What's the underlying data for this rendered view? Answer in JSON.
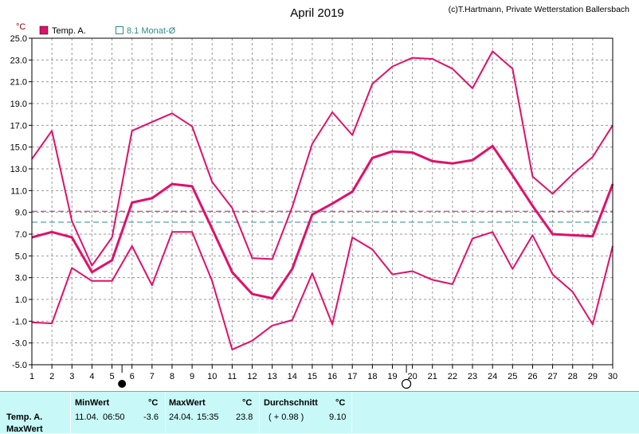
{
  "title": "April 2019",
  "credit": "(c)T.Hartmann, Private Wetterstation Ballersbach",
  "unit_label": "°C",
  "legend": [
    {
      "label": "Temp. A.",
      "color": "#e0106a",
      "icon": "filled-square-icon"
    },
    {
      "label": "8.1 Monat-Ø",
      "color": "#2e8b8b",
      "icon": "outline-square-icon"
    }
  ],
  "chart_data": {
    "type": "line",
    "title": "April 2019",
    "ylabel": "°C",
    "x": [
      1,
      2,
      3,
      4,
      5,
      6,
      7,
      8,
      9,
      10,
      11,
      12,
      13,
      14,
      15,
      16,
      17,
      18,
      19,
      20,
      21,
      22,
      23,
      24,
      25,
      26,
      27,
      28,
      29,
      30
    ],
    "ylim": [
      -5.0,
      25.0
    ],
    "yticks": [
      "25.0",
      "23.0",
      "21.0",
      "19.0",
      "17.0",
      "15.0",
      "13.0",
      "11.0",
      "9.0",
      "7.0",
      "5.0",
      "3.0",
      "1.0",
      "-1.0",
      "-3.0",
      "-5.0"
    ],
    "grid": true,
    "series": [
      {
        "role": "max",
        "color": "#e0106a",
        "values": [
          13.9,
          16.5,
          8.2,
          4.1,
          6.7,
          16.5,
          17.3,
          18.1,
          16.9,
          11.8,
          9.4,
          4.8,
          4.7,
          9.5,
          15.3,
          18.2,
          16.1,
          20.8,
          22.4,
          23.2,
          23.1,
          22.2,
          20.4,
          23.8,
          22.2,
          12.3,
          10.7,
          12.5,
          14.1,
          17.0
        ]
      },
      {
        "role": "avg",
        "color": "#e0106a",
        "values": [
          6.7,
          7.2,
          6.7,
          3.5,
          4.6,
          9.9,
          10.3,
          11.6,
          11.4,
          7.5,
          3.5,
          1.5,
          1.1,
          3.8,
          8.8,
          9.8,
          10.9,
          14.0,
          14.6,
          14.5,
          13.7,
          13.5,
          13.8,
          15.1,
          12.4,
          9.6,
          7.0,
          6.9,
          6.8,
          11.6
        ]
      },
      {
        "role": "min",
        "color": "#e0106a",
        "values": [
          -1.1,
          -1.2,
          3.9,
          2.7,
          2.7,
          5.9,
          2.3,
          7.2,
          7.2,
          2.7,
          -3.6,
          -2.8,
          -1.4,
          -0.9,
          3.4,
          -1.3,
          6.7,
          5.6,
          3.3,
          3.6,
          2.8,
          2.4,
          6.6,
          7.2,
          3.8,
          6.9,
          3.3,
          1.7,
          -1.3,
          5.9
        ]
      }
    ],
    "reference_lines": [
      {
        "value": 9.1,
        "color": "#c02080"
      },
      {
        "value": 8.1,
        "color": "#2e8b8b"
      }
    ],
    "moon_markers": [
      {
        "day": 5.5,
        "phase": "new"
      },
      {
        "day": 19.7,
        "phase": "full"
      }
    ]
  },
  "stats": {
    "row_label_1": "Temp. A.",
    "row_label_2": "MaxWert",
    "min": {
      "header": "MinWert",
      "unit": "°C",
      "date": "11.04.",
      "time": "06:50",
      "value": "-3.6"
    },
    "max": {
      "header": "MaxWert",
      "unit": "°C",
      "date": "24.04.",
      "time": "15:35",
      "value": "23.8"
    },
    "avg": {
      "header": "Durchschnitt",
      "unit": "°C",
      "delta": "( + 0.98 )",
      "value": "9.10"
    }
  }
}
